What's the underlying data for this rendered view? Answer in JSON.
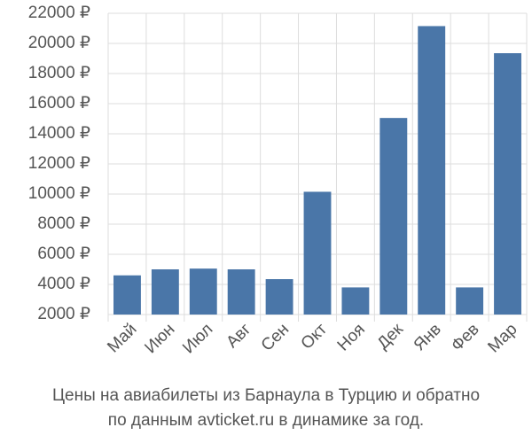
{
  "chart_data": {
    "type": "bar",
    "title": [
      "Цены на авиабилеты из Барнаула в Турцию и обратно",
      "по данным avticket.ru в динамике за год."
    ],
    "categories": [
      "Май",
      "Июн",
      "Июл",
      "Авг",
      "Сен",
      "Окт",
      "Ноя",
      "Дек",
      "Янв",
      "Фев",
      "Мар"
    ],
    "values": [
      4600,
      5000,
      5050,
      5000,
      4350,
      10150,
      3800,
      15050,
      21150,
      3800,
      19350
    ],
    "color": "#4a76a8",
    "ylim": [
      2000,
      22000
    ],
    "yticks": [
      {
        "value": 2000,
        "label": "2000 ₽"
      },
      {
        "value": 4000,
        "label": "4000 ₽"
      },
      {
        "value": 6000,
        "label": "6000 ₽"
      },
      {
        "value": 8000,
        "label": "8000 ₽"
      },
      {
        "value": 10000,
        "label": "10000 ₽"
      },
      {
        "value": 12000,
        "label": "12000 ₽"
      },
      {
        "value": 14000,
        "label": "14000 ₽"
      },
      {
        "value": 16000,
        "label": "16000 ₽"
      },
      {
        "value": 18000,
        "label": "18000 ₽"
      },
      {
        "value": 20000,
        "label": "20000 ₽"
      },
      {
        "value": 22000,
        "label": "22000 ₽"
      }
    ],
    "grid": true
  }
}
